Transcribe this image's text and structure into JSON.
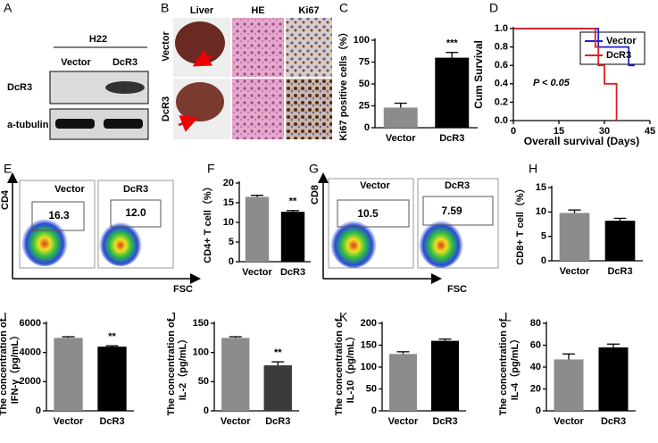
{
  "panels": {
    "A": {
      "label": "A",
      "cell_line": "H22",
      "lanes": [
        "Vector",
        "DcR3"
      ],
      "proteins": [
        "DcR3",
        "a-tubulin"
      ]
    },
    "B": {
      "label": "B",
      "columns": [
        "Liver",
        "HE",
        "Ki67"
      ],
      "rows": [
        "Vector",
        "DcR3"
      ]
    },
    "E": {
      "label": "E",
      "y_axis": "CD4",
      "x_axis": "FSC",
      "samples": [
        "Vector",
        "DcR3"
      ],
      "gates": [
        "16.3",
        "12.0"
      ]
    },
    "G": {
      "label": "G",
      "y_axis": "CD8",
      "x_axis": "FSC",
      "samples": [
        "Vector",
        "DcR3"
      ],
      "gates": [
        "10.5",
        "7.59"
      ]
    }
  },
  "chart_data": [
    {
      "type": "bar",
      "label": "C",
      "ylabel": [
        "Ki67 positive cells（%）"
      ],
      "categories": [
        "Vector",
        "DcR3"
      ],
      "values": [
        23,
        80
      ],
      "errors": [
        5,
        6
      ],
      "colors": [
        "#8c8c8c",
        "#000000"
      ],
      "ylim": [
        0,
        100
      ],
      "yticks": [
        0,
        25,
        50,
        75,
        100
      ],
      "annotation": "***"
    },
    {
      "type": "line",
      "label": "D",
      "ylabel": "Cum Survival",
      "xlabel": "Overall survival (Days)",
      "annotation": "P < 0.05",
      "legend": "upper right",
      "series": [
        {
          "name": "Vector",
          "color": "#1f1fd0",
          "x": [
            0,
            28,
            28,
            38,
            38,
            40
          ],
          "values": [
            1,
            1,
            0.8,
            0.8,
            0.6,
            0.6
          ]
        },
        {
          "name": "DcR3",
          "color": "#e02020",
          "x": [
            0,
            27,
            27,
            28,
            28,
            30,
            30,
            34,
            34
          ],
          "values": [
            1,
            1,
            0.8,
            0.8,
            0.6,
            0.6,
            0.4,
            0.4,
            0
          ]
        }
      ],
      "xlim": [
        0,
        45
      ],
      "xticks": [
        0,
        15,
        30,
        45
      ],
      "ylim": [
        0,
        1
      ],
      "yticks": [
        {
          "value": 0,
          "label": "0.0"
        },
        0.2,
        0.4,
        0.6,
        0.8,
        {
          "value": 1,
          "label": "1.0"
        }
      ]
    },
    {
      "type": "bar",
      "label": "F",
      "ylabel": [
        "CD4+ T cell（%）"
      ],
      "categories": [
        "Vector",
        "DcR3"
      ],
      "values": [
        16.5,
        12.7
      ],
      "errors": [
        0.4,
        0.3
      ],
      "colors": [
        "#8c8c8c",
        "#000000"
      ],
      "ylim": [
        0,
        20
      ],
      "yticks": [
        0,
        5,
        10,
        15,
        20
      ],
      "annotation": "**"
    },
    {
      "type": "bar",
      "label": "H",
      "ylabel": [
        "CD8+ T cell（%）"
      ],
      "categories": [
        "Vector",
        "DcR3"
      ],
      "values": [
        9.8,
        8.2
      ],
      "errors": [
        0.6,
        0.5
      ],
      "colors": [
        "#8c8c8c",
        "#000000"
      ],
      "ylim": [
        0,
        15
      ],
      "yticks": [
        0,
        5,
        10,
        15
      ]
    },
    {
      "type": "bar",
      "label": "I",
      "ylabel": [
        "The concentration of",
        "IFN-γ（pg/mL）"
      ],
      "categories": [
        "Vector",
        "DcR3"
      ],
      "values": [
        5000,
        4400
      ],
      "errors": [
        80,
        60
      ],
      "colors": [
        "#8c8c8c",
        "#000000"
      ],
      "ylim": [
        0,
        6000
      ],
      "yticks": [
        0,
        2000,
        4000,
        6000
      ],
      "annotation": "**"
    },
    {
      "type": "bar",
      "label": "J",
      "ylabel": [
        "The concentration of",
        "IL-2（pg/mL）"
      ],
      "categories": [
        "Vector",
        "DcR3"
      ],
      "values": [
        125,
        78
      ],
      "errors": [
        2,
        6
      ],
      "colors": [
        "#8c8c8c",
        "#3a3a3a"
      ],
      "ylim": [
        0,
        150
      ],
      "yticks": [
        0,
        50,
        100,
        150
      ],
      "annotation": "**"
    },
    {
      "type": "bar",
      "label": "K",
      "ylabel": [
        "The concentration of",
        "IL-10（pg/mL）"
      ],
      "categories": [
        "Vector",
        "DcR3"
      ],
      "values": [
        130,
        160
      ],
      "errors": [
        5,
        4
      ],
      "colors": [
        "#8c8c8c",
        "#000000"
      ],
      "ylim": [
        0,
        200
      ],
      "yticks": [
        0,
        50,
        100,
        150,
        200
      ]
    },
    {
      "type": "bar",
      "label": "L",
      "ylabel": [
        "The concentration of",
        "IL-4（pg/mL）"
      ],
      "categories": [
        "Vector",
        "DcR3"
      ],
      "values": [
        47,
        58
      ],
      "errors": [
        5,
        3
      ],
      "colors": [
        "#8c8c8c",
        "#000000"
      ],
      "ylim": [
        0,
        80
      ],
      "yticks": [
        0,
        20,
        40,
        60,
        80
      ]
    }
  ]
}
